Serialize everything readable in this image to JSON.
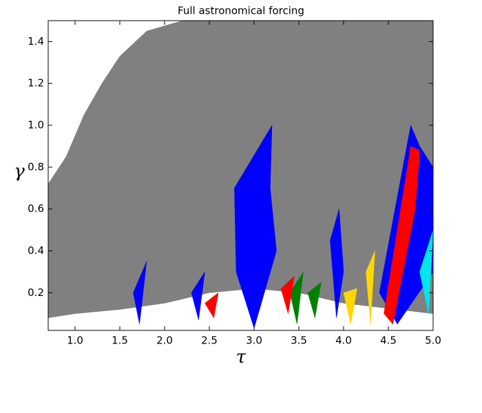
{
  "chart_data": {
    "type": "region",
    "title": "Full astronomical forcing",
    "x_label": "τ",
    "y_label": "γ",
    "xlim": [
      0.7,
      5.0
    ],
    "ylim": [
      0.02,
      1.5
    ],
    "xticks": [
      {
        "value": 1,
        "label": "1.0"
      },
      1.5,
      {
        "value": 2,
        "label": "2.0"
      },
      2.5,
      {
        "value": 3,
        "label": "3.0"
      },
      3.5,
      {
        "value": 4,
        "label": "4.0"
      },
      4.5,
      {
        "value": 5,
        "label": "5.0"
      }
    ],
    "yticks": [
      0.2,
      0.4,
      0.6,
      0.8,
      {
        "value": 1,
        "label": "1.0"
      },
      1.2,
      1.4
    ],
    "regions": [
      {
        "color": "#808080",
        "x": [
          0.7,
          0.9,
          1.1,
          1.3,
          1.5,
          1.8,
          2.2,
          5.0,
          5.0,
          4.6,
          4.0,
          3.5,
          3.0,
          2.5,
          2.0,
          1.5,
          1.0,
          0.7
        ],
        "y": [
          0.72,
          0.85,
          1.05,
          1.2,
          1.33,
          1.45,
          1.5,
          1.5,
          0.1,
          0.12,
          0.15,
          0.2,
          0.22,
          0.2,
          0.15,
          0.12,
          0.1,
          0.08
        ]
      },
      {
        "color": "#0000ff",
        "x": [
          2.78,
          3.2,
          3.18,
          3.25,
          3.0,
          2.8
        ],
        "y": [
          0.7,
          1.0,
          0.7,
          0.4,
          0.03,
          0.3
        ]
      },
      {
        "color": "#0000ff",
        "x": [
          4.4,
          4.75,
          4.85,
          5.0,
          5.0,
          4.6
        ],
        "y": [
          0.2,
          1.0,
          0.9,
          0.8,
          0.3,
          0.05
        ]
      },
      {
        "color": "#ff0000",
        "x": [
          4.45,
          4.75,
          4.85,
          4.8,
          4.55
        ],
        "y": [
          0.1,
          0.9,
          0.88,
          0.6,
          0.05
        ]
      },
      {
        "color": "#0000ff",
        "x": [
          3.85,
          3.95,
          4.0,
          3.92
        ],
        "y": [
          0.45,
          0.6,
          0.3,
          0.08
        ]
      },
      {
        "color": "#0000ff",
        "x": [
          1.65,
          1.8,
          1.72
        ],
        "y": [
          0.2,
          0.35,
          0.05
        ]
      },
      {
        "color": "#0000ff",
        "x": [
          2.3,
          2.45,
          2.38
        ],
        "y": [
          0.2,
          0.3,
          0.07
        ]
      },
      {
        "color": "#ffd700",
        "x": [
          4.0,
          4.15,
          4.08
        ],
        "y": [
          0.2,
          0.22,
          0.05
        ]
      },
      {
        "color": "#ffd700",
        "x": [
          4.25,
          4.35,
          4.3
        ],
        "y": [
          0.3,
          0.4,
          0.05
        ]
      },
      {
        "color": "#00e5ee",
        "x": [
          4.85,
          5.0,
          4.95
        ],
        "y": [
          0.3,
          0.5,
          0.1
        ]
      },
      {
        "color": "#008000",
        "x": [
          3.4,
          3.55,
          3.48
        ],
        "y": [
          0.2,
          0.3,
          0.05
        ]
      },
      {
        "color": "#008000",
        "x": [
          3.6,
          3.75,
          3.68
        ],
        "y": [
          0.2,
          0.25,
          0.08
        ]
      },
      {
        "color": "#ff0000",
        "x": [
          2.45,
          2.6,
          2.55
        ],
        "y": [
          0.15,
          0.2,
          0.08
        ]
      },
      {
        "color": "#ff0000",
        "x": [
          3.3,
          3.45,
          3.38
        ],
        "y": [
          0.22,
          0.28,
          0.1
        ]
      }
    ]
  }
}
